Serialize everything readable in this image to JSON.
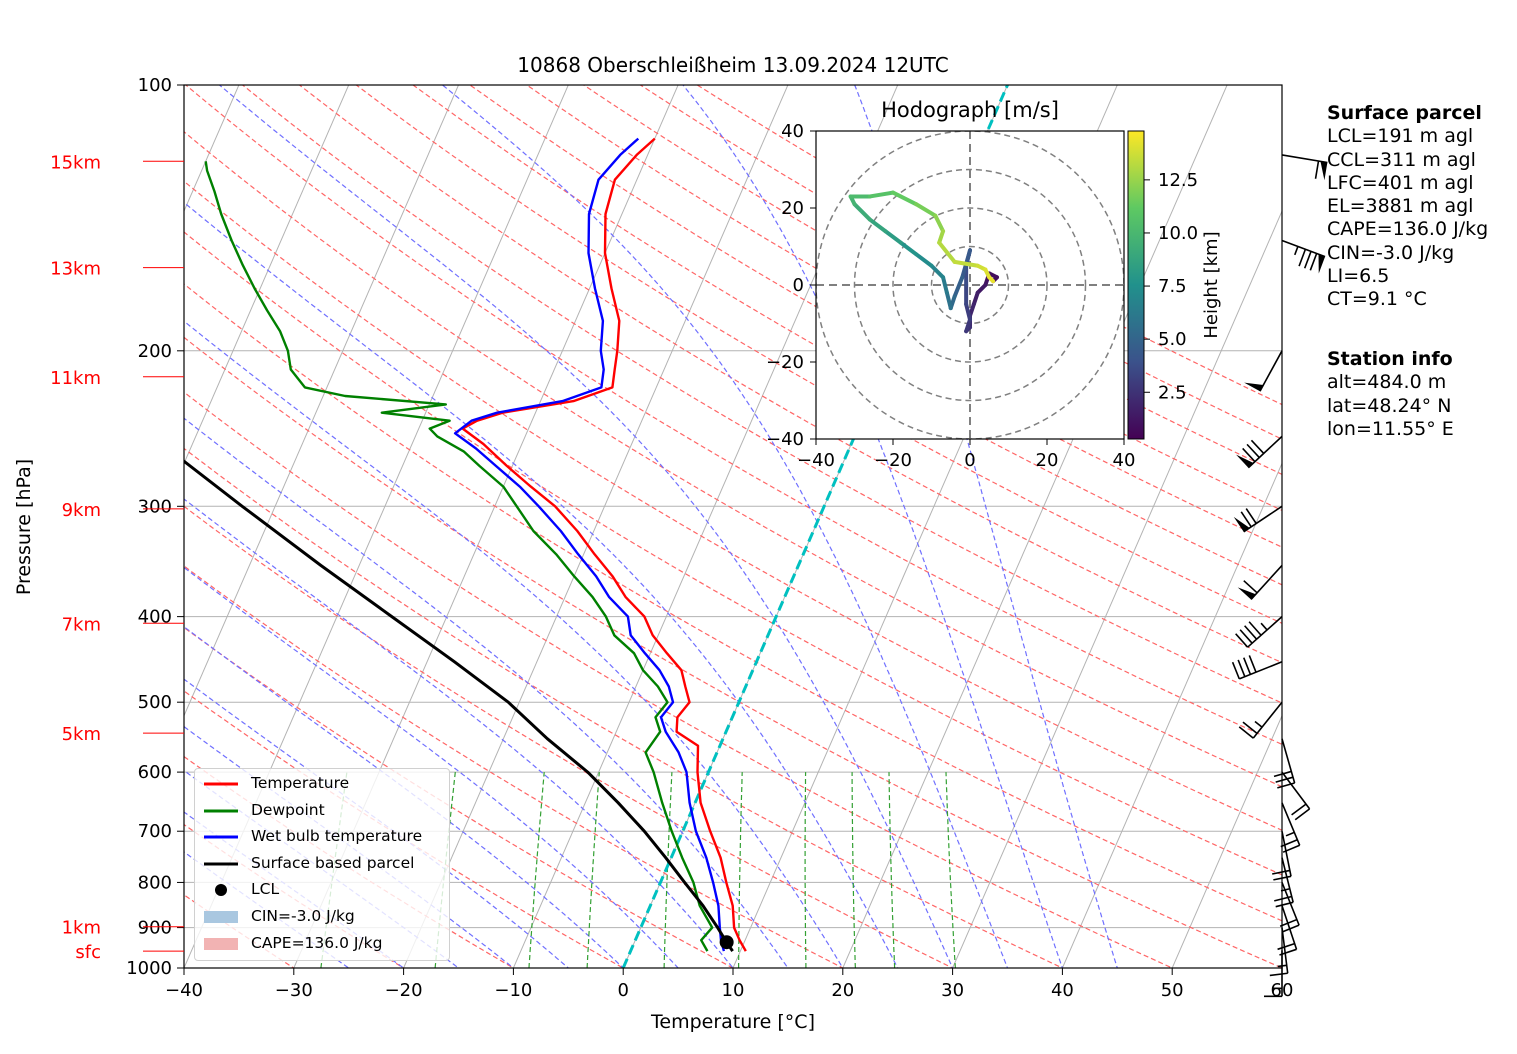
{
  "chart_data": {
    "type": "skew-t log-p sounding",
    "title": "10868 Oberschleißheim 13.09.2024 12UTC",
    "xlabel": "Temperature [°C]",
    "ylabel": "Pressure [hPa]",
    "xlim": [
      -40,
      60
    ],
    "plim": [
      1000,
      100
    ],
    "x_ticks": [
      "−40",
      "−30",
      "−20",
      "−10",
      "0",
      "10",
      "20",
      "30",
      "40",
      "50",
      "60"
    ],
    "p_ticks": [
      {
        "p": 100,
        "label": "100"
      },
      {
        "p": 200,
        "label": "200"
      },
      {
        "p": 300,
        "label": "300"
      },
      {
        "p": 400,
        "label": "400"
      },
      {
        "p": 500,
        "label": "500"
      },
      {
        "p": 600,
        "label": "600"
      },
      {
        "p": 700,
        "label": "700"
      },
      {
        "p": 800,
        "label": "800"
      },
      {
        "p": 900,
        "label": "900"
      },
      {
        "p": 1000,
        "label": "1000"
      }
    ],
    "height_labels": [
      {
        "label": "15km",
        "p": 122
      },
      {
        "label": "13km",
        "p": 161
      },
      {
        "label": "11km",
        "p": 214
      },
      {
        "label": "9km",
        "p": 302
      },
      {
        "label": "7km",
        "p": 407
      },
      {
        "label": "5km",
        "p": 542
      },
      {
        "label": "1km",
        "p": 898
      },
      {
        "label": "sfc",
        "p": 957
      }
    ],
    "grid": true,
    "series": [
      {
        "name": "Temperature",
        "color": "#ff0000",
        "points": [
          [
            10.5,
            957
          ],
          [
            9.5,
            930
          ],
          [
            8.5,
            900
          ],
          [
            7.5,
            850
          ],
          [
            6.0,
            800
          ],
          [
            4.5,
            750
          ],
          [
            2.5,
            700
          ],
          [
            0.5,
            650
          ],
          [
            -1.0,
            600
          ],
          [
            -2.0,
            560
          ],
          [
            -4.5,
            540
          ],
          [
            -5.0,
            520
          ],
          [
            -4.5,
            500
          ],
          [
            -5.5,
            480
          ],
          [
            -6.5,
            460
          ],
          [
            -8.5,
            440
          ],
          [
            -10.5,
            420
          ],
          [
            -12.0,
            400
          ],
          [
            -14.5,
            380
          ],
          [
            -16.5,
            360
          ],
          [
            -19.0,
            340
          ],
          [
            -21.5,
            320
          ],
          [
            -24.5,
            300
          ],
          [
            -27.5,
            285
          ],
          [
            -30.5,
            270
          ],
          [
            -33.5,
            255
          ],
          [
            -36.0,
            245
          ],
          [
            -35.0,
            240
          ],
          [
            -33.0,
            235
          ],
          [
            -27.0,
            228
          ],
          [
            -24.0,
            220
          ],
          [
            -24.5,
            210
          ],
          [
            -25.0,
            200
          ],
          [
            -26.0,
            185
          ],
          [
            -28.0,
            170
          ],
          [
            -30.0,
            155
          ],
          [
            -31.5,
            140
          ],
          [
            -32.0,
            128
          ],
          [
            -31.0,
            120
          ],
          [
            -30.0,
            115
          ]
        ]
      },
      {
        "name": "Dewpoint",
        "color": "#008000",
        "points": [
          [
            7.0,
            957
          ],
          [
            6.0,
            930
          ],
          [
            6.5,
            900
          ],
          [
            4.5,
            850
          ],
          [
            3.0,
            800
          ],
          [
            1.0,
            750
          ],
          [
            -1.0,
            700
          ],
          [
            -3.0,
            650
          ],
          [
            -5.0,
            600
          ],
          [
            -6.5,
            570
          ],
          [
            -6.0,
            540
          ],
          [
            -7.0,
            520
          ],
          [
            -6.5,
            500
          ],
          [
            -8.0,
            480
          ],
          [
            -10.0,
            460
          ],
          [
            -11.5,
            440
          ],
          [
            -14.0,
            420
          ],
          [
            -15.5,
            400
          ],
          [
            -17.5,
            380
          ],
          [
            -20.0,
            360
          ],
          [
            -22.5,
            340
          ],
          [
            -25.5,
            320
          ],
          [
            -28.0,
            300
          ],
          [
            -30.0,
            285
          ],
          [
            -33.0,
            270
          ],
          [
            -35.0,
            260
          ],
          [
            -38.0,
            250
          ],
          [
            -39.0,
            245
          ],
          [
            -37.5,
            240
          ],
          [
            -44.0,
            235
          ],
          [
            -38.5,
            230
          ],
          [
            -48.0,
            225
          ],
          [
            -52.0,
            220
          ],
          [
            -54.0,
            210
          ],
          [
            -55.0,
            200
          ],
          [
            -56.5,
            190
          ],
          [
            -58.5,
            180
          ],
          [
            -60.5,
            170
          ],
          [
            -62.5,
            160
          ],
          [
            -64.5,
            150
          ],
          [
            -66.5,
            140
          ],
          [
            -68.0,
            132
          ],
          [
            -69.5,
            125
          ],
          [
            -70.0,
            122
          ]
        ]
      },
      {
        "name": "Wet bulb temperature",
        "color": "#0000ff",
        "points": [
          [
            8.5,
            957
          ],
          [
            7.8,
            930
          ],
          [
            7.2,
            900
          ],
          [
            6.2,
            850
          ],
          [
            4.8,
            800
          ],
          [
            3.2,
            750
          ],
          [
            1.2,
            700
          ],
          [
            -0.5,
            650
          ],
          [
            -2.0,
            600
          ],
          [
            -3.5,
            570
          ],
          [
            -5.5,
            540
          ],
          [
            -6.5,
            520
          ],
          [
            -6.0,
            500
          ],
          [
            -7.0,
            480
          ],
          [
            -8.5,
            460
          ],
          [
            -10.5,
            440
          ],
          [
            -12.5,
            420
          ],
          [
            -13.5,
            400
          ],
          [
            -16.0,
            380
          ],
          [
            -18.0,
            360
          ],
          [
            -20.5,
            340
          ],
          [
            -23.0,
            320
          ],
          [
            -26.0,
            300
          ],
          [
            -28.5,
            285
          ],
          [
            -31.5,
            270
          ],
          [
            -34.0,
            258
          ],
          [
            -36.5,
            248
          ],
          [
            -35.5,
            240
          ],
          [
            -33.5,
            235
          ],
          [
            -28.0,
            228
          ],
          [
            -25.0,
            220
          ],
          [
            -25.5,
            210
          ],
          [
            -26.5,
            200
          ],
          [
            -27.5,
            185
          ],
          [
            -29.5,
            170
          ],
          [
            -31.5,
            155
          ],
          [
            -33.0,
            140
          ],
          [
            -33.5,
            128
          ],
          [
            -32.5,
            120
          ],
          [
            -31.5,
            115
          ]
        ]
      },
      {
        "name": "Surface based parcel",
        "color": "#000000",
        "points": [
          [
            9.3,
            957
          ],
          [
            8.4,
            935
          ],
          [
            7.0,
            900
          ],
          [
            4.8,
            850
          ],
          [
            2.2,
            800
          ],
          [
            -0.5,
            750
          ],
          [
            -3.5,
            700
          ],
          [
            -7.0,
            650
          ],
          [
            -11.0,
            600
          ],
          [
            -16.0,
            550
          ],
          [
            -21.0,
            500
          ],
          [
            -27.5,
            450
          ],
          [
            -35.0,
            400
          ],
          [
            -43.5,
            350
          ],
          [
            -53.0,
            300
          ],
          [
            -64.0,
            250
          ],
          [
            -76.0,
            200
          ],
          [
            -90.0,
            155
          ]
        ]
      }
    ],
    "lcl": {
      "name": "LCL",
      "t": 8.4,
      "p": 935
    },
    "legend": [
      {
        "label": "Temperature",
        "kind": "line",
        "color": "#ff0000"
      },
      {
        "label": "Dewpoint",
        "kind": "line",
        "color": "#008000"
      },
      {
        "label": "Wet bulb temperature",
        "kind": "line",
        "color": "#0000ff"
      },
      {
        "label": "Surface based parcel",
        "kind": "line",
        "color": "#000000"
      },
      {
        "label": "LCL",
        "kind": "dot",
        "color": "#000000"
      },
      {
        "label": "CIN=-3.0 J/kg",
        "kind": "patch",
        "color": "#a9c7e0"
      },
      {
        "label": "CAPE=136.0 J/kg",
        "kind": "patch",
        "color": "#f2b3b3"
      }
    ],
    "legend_position": "lower left",
    "freezing_level_line_color": "#00c0c0",
    "hodograph": {
      "title": "Hodograph [m/s]",
      "xlim": [
        -40,
        40
      ],
      "ylim": [
        -40,
        40
      ],
      "ticks": [
        "−40",
        "−20",
        "0",
        "20",
        "40"
      ],
      "tick_values": [
        -40,
        -20,
        0,
        20,
        40
      ],
      "rings": [
        10,
        20,
        30,
        40
      ],
      "colorbar_label": "Height [km]",
      "colorbar_ticks": [
        "2.5",
        "5.0",
        "7.5",
        "10.0",
        "12.5"
      ],
      "colorbar_values": [
        2.5,
        5.0,
        7.5,
        10.0,
        12.5
      ],
      "colorbar_range": [
        0.3,
        14.8
      ],
      "points": [
        [
          6,
          1,
          0.5
        ],
        [
          7,
          2,
          0.8
        ],
        [
          5,
          3,
          1.0
        ],
        [
          4,
          0,
          1.2
        ],
        [
          2,
          -2,
          1.5
        ],
        [
          1,
          -5,
          1.8
        ],
        [
          0,
          -8,
          2.0
        ],
        [
          0,
          -11,
          2.3
        ],
        [
          -1,
          -12,
          2.6
        ],
        [
          0,
          -9,
          2.9
        ],
        [
          -1,
          -5,
          3.2
        ],
        [
          -1,
          0,
          3.5
        ],
        [
          -1,
          5,
          3.8
        ],
        [
          0,
          9,
          4.1
        ],
        [
          -2,
          2,
          4.5
        ],
        [
          -4,
          -3,
          5.0
        ],
        [
          -5,
          -6,
          5.5
        ],
        [
          -6,
          -2,
          6.0
        ],
        [
          -7,
          2,
          6.5
        ],
        [
          -10,
          5,
          7.0
        ],
        [
          -14,
          8,
          7.5
        ],
        [
          -18,
          11,
          8.0
        ],
        [
          -22,
          14,
          8.5
        ],
        [
          -26,
          17,
          9.0
        ],
        [
          -30,
          21,
          9.5
        ],
        [
          -31,
          23,
          10.0
        ],
        [
          -26,
          23,
          10.5
        ],
        [
          -20,
          24,
          11.0
        ],
        [
          -14,
          21,
          11.5
        ],
        [
          -9,
          18,
          12.0
        ],
        [
          -7,
          14,
          12.5
        ],
        [
          -8,
          11,
          13.0
        ],
        [
          -4,
          6,
          13.3
        ],
        [
          2,
          5,
          13.6
        ],
        [
          4,
          4,
          13.9
        ],
        [
          5,
          2,
          14.2
        ],
        [
          6,
          1,
          14.5
        ]
      ]
    },
    "wind_barbs": [
      {
        "p": 955,
        "u": 0,
        "v": 8
      },
      {
        "p": 900,
        "u": -1,
        "v": 8
      },
      {
        "p": 850,
        "u": -3,
        "v": 9
      },
      {
        "p": 800,
        "u": -4,
        "v": 10
      },
      {
        "p": 750,
        "u": -3,
        "v": 12
      },
      {
        "p": 700,
        "u": -2,
        "v": 10
      },
      {
        "p": 650,
        "u": -5,
        "v": 12
      },
      {
        "p": 600,
        "u": -6,
        "v": 8
      },
      {
        "p": 550,
        "u": -4,
        "v": 14
      },
      {
        "p": 500,
        "u": 8,
        "v": 10
      },
      {
        "p": 450,
        "u": 20,
        "v": 8
      },
      {
        "p": 400,
        "u": 18,
        "v": 16
      },
      {
        "p": 350,
        "u": 20,
        "v": 22
      },
      {
        "p": 300,
        "u": 30,
        "v": 20
      },
      {
        "p": 250,
        "u": 30,
        "v": 28
      },
      {
        "p": 200,
        "u": 12,
        "v": 22
      },
      {
        "p": 150,
        "u": -40,
        "v": 15
      },
      {
        "p": 120,
        "u": -30,
        "v": 5
      }
    ]
  },
  "surface_parcel": {
    "heading": "Surface parcel",
    "lines": [
      "LCL=191 m agl",
      "CCL=311 m agl",
      "LFC=401 m agl",
      "EL=3881 m agl",
      "CAPE=136.0 J/kg",
      "CIN=-3.0 J/kg",
      "LI=6.5",
      "CT=9.1 °C"
    ]
  },
  "station_info": {
    "heading": "Station info",
    "lines": [
      "alt=484.0 m",
      "lat=48.24° N",
      "lon=11.55° E"
    ]
  },
  "colors": {
    "isotherm": "#b3b3b3",
    "dry_adiabat": "#ff6666",
    "moist_adiabat": "#7070ff",
    "mixing_ratio": "#33a033",
    "cape_fill": "#f2b3b3",
    "cin_fill": "#a9c7e0"
  }
}
